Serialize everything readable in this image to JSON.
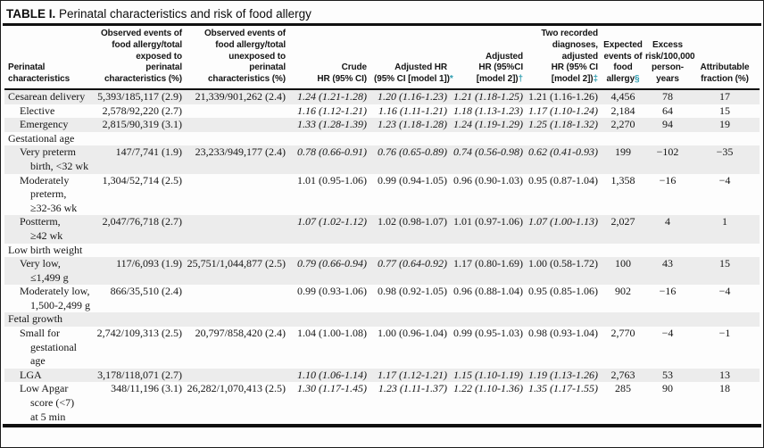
{
  "title": {
    "label": "TABLE I.",
    "text": "Perinatal characteristics and risk of food allergy"
  },
  "accent_color": "#2b9caf",
  "stripe_color": "#ececec",
  "header": {
    "label_column_lines": [
      "Perinatal",
      "characteristics"
    ],
    "columns": [
      {
        "id": "exposed",
        "lines": [
          "Observed events of",
          "food allergy/total",
          "exposed to",
          "perinatal",
          "characteristics (%)"
        ],
        "mark": ""
      },
      {
        "id": "unexposed",
        "lines": [
          "Observed events of",
          "food allergy/total",
          "unexposed to",
          "perinatal",
          "characteristics (%)"
        ],
        "mark": ""
      },
      {
        "id": "crude",
        "lines": [
          "Crude",
          "HR (95% CI)"
        ],
        "mark": ""
      },
      {
        "id": "adj1",
        "lines": [
          "Adjusted HR",
          "(95% CI [model 1])"
        ],
        "mark": "*"
      },
      {
        "id": "adj2",
        "lines": [
          "Adjusted",
          "HR (95%CI",
          "[model 2])"
        ],
        "mark": "†"
      },
      {
        "id": "two",
        "lines": [
          "Two recorded",
          "diagnoses,",
          "adjusted",
          "HR (95% CI",
          "[model 2])"
        ],
        "mark": "‡"
      },
      {
        "id": "expected",
        "lines": [
          "Expected",
          "events of",
          "food",
          "allergy"
        ],
        "mark": "§"
      },
      {
        "id": "excess",
        "lines": [
          "Excess",
          "risk/100,000",
          "person-",
          "years"
        ],
        "mark": ""
      },
      {
        "id": "attrib",
        "lines": [
          "Attributable",
          "fraction (%)"
        ],
        "mark": ""
      }
    ]
  },
  "rows": [
    {
      "shaded": true,
      "indent": 0,
      "section": false,
      "label_lines": [
        "Cesarean delivery"
      ],
      "cells": {
        "exposed": "5,393/185,117 (2.9)",
        "unexposed": "21,339/901,262 (2.4)",
        "crude": "1.24 (1.21-1.28)",
        "adj1": "1.20 (1.16-1.23)",
        "adj2": "1.21 (1.18-1.25)",
        "two": "1.21 (1.16-1.26)",
        "expected": "4,456",
        "excess": "78",
        "attrib": "17"
      },
      "italic": [
        "crude",
        "adj1",
        "adj2"
      ]
    },
    {
      "shaded": false,
      "indent": 1,
      "section": false,
      "label_lines": [
        "Elective"
      ],
      "cells": {
        "exposed": "2,578/92,220 (2.7)",
        "crude": "1.16 (1.12-1.21)",
        "adj1": "1.16 (1.11-1.21)",
        "adj2": "1.18 (1.13-1.23)",
        "two": "1.17 (1.10-1.24)",
        "expected": "2,184",
        "excess": "64",
        "attrib": "15"
      },
      "italic": [
        "crude",
        "adj1",
        "adj2",
        "two"
      ]
    },
    {
      "shaded": true,
      "indent": 1,
      "section": false,
      "label_lines": [
        "Emergency"
      ],
      "cells": {
        "exposed": "2,815/90,319 (3.1)",
        "crude": "1.33 (1.28-1.39)",
        "adj1": "1.23 (1.18-1.28)",
        "adj2": "1.24 (1.19-1.29)",
        "two": "1.25 (1.18-1.32)",
        "expected": "2,270",
        "excess": "94",
        "attrib": "19"
      },
      "italic": [
        "crude",
        "adj1",
        "adj2",
        "two"
      ]
    },
    {
      "shaded": false,
      "indent": 0,
      "section": true,
      "label_lines": [
        "Gestational age"
      ],
      "cells": {},
      "italic": []
    },
    {
      "shaded": true,
      "indent": 1,
      "section": false,
      "label_lines": [
        "Very preterm",
        "birth, <32 wk"
      ],
      "cells": {
        "exposed": "147/7,741 (1.9)",
        "unexposed": "23,233/949,177 (2.4)",
        "crude": "0.78 (0.66-0.91)",
        "adj1": "0.76 (0.65-0.89)",
        "adj2": "0.74 (0.56-0.98)",
        "two": "0.62 (0.41-0.93)",
        "expected": "199",
        "excess": "−102",
        "attrib": "−35"
      },
      "italic": [
        "crude",
        "adj1",
        "adj2",
        "two"
      ]
    },
    {
      "shaded": false,
      "indent": 1,
      "section": false,
      "label_lines": [
        "Moderately",
        "preterm,",
        "≥32-36 wk"
      ],
      "cells": {
        "exposed": "1,304/52,714 (2.5)",
        "crude": "1.01 (0.95-1.06)",
        "adj1": "0.99 (0.94-1.05)",
        "adj2": "0.96 (0.90-1.03)",
        "two": "0.95 (0.87-1.04)",
        "expected": "1,358",
        "excess": "−16",
        "attrib": "−4"
      },
      "italic": []
    },
    {
      "shaded": true,
      "indent": 1,
      "section": false,
      "label_lines": [
        "Postterm,",
        "≥42 wk"
      ],
      "cells": {
        "exposed": "2,047/76,718 (2.7)",
        "crude": "1.07 (1.02-1.12)",
        "adj1": "1.02 (0.98-1.07)",
        "adj2": "1.01 (0.97-1.06)",
        "two": "1.07 (1.00-1.13)",
        "expected": "2,027",
        "excess": "4",
        "attrib": "1"
      },
      "italic": [
        "crude",
        "two"
      ]
    },
    {
      "shaded": false,
      "indent": 0,
      "section": true,
      "label_lines": [
        "Low birth weight"
      ],
      "cells": {},
      "italic": []
    },
    {
      "shaded": true,
      "indent": 1,
      "section": false,
      "label_lines": [
        "Very low,",
        "≤1,499 g"
      ],
      "cells": {
        "exposed": "117/6,093 (1.9)",
        "unexposed": "25,751/1,044,877 (2.5)",
        "crude": "0.79 (0.66-0.94)",
        "adj1": "0.77 (0.64-0.92)",
        "adj2": "1.17 (0.80-1.69)",
        "two": "1.00 (0.58-1.72)",
        "expected": "100",
        "excess": "43",
        "attrib": "15"
      },
      "italic": [
        "crude",
        "adj1"
      ]
    },
    {
      "shaded": false,
      "indent": 1,
      "section": false,
      "label_lines": [
        "Moderately low,",
        "1,500-2,499 g"
      ],
      "cells": {
        "exposed": "866/35,510 (2.4)",
        "crude": "0.99 (0.93-1.06)",
        "adj1": "0.98 (0.92-1.05)",
        "adj2": "0.96 (0.88-1.04)",
        "two": "0.95 (0.85-1.06)",
        "expected": "902",
        "excess": "−16",
        "attrib": "−4"
      },
      "italic": []
    },
    {
      "shaded": true,
      "indent": 0,
      "section": true,
      "label_lines": [
        "Fetal growth"
      ],
      "cells": {},
      "italic": []
    },
    {
      "shaded": false,
      "indent": 1,
      "section": false,
      "label_lines": [
        "Small for",
        "gestational",
        "age"
      ],
      "cells": {
        "exposed": "2,742/109,313 (2.5)",
        "unexposed": "20,797/858,420 (2.4)",
        "crude": "1.04 (1.00-1.08)",
        "adj1": "1.00 (0.96-1.04)",
        "adj2": "0.99 (0.95-1.03)",
        "two": "0.98 (0.93-1.04)",
        "expected": "2,770",
        "excess": "−4",
        "attrib": "−1"
      },
      "italic": []
    },
    {
      "shaded": true,
      "indent": 1,
      "section": false,
      "label_lines": [
        "LGA"
      ],
      "cells": {
        "exposed": "3,178/118,071 (2.7)",
        "crude": "1.10 (1.06-1.14)",
        "adj1": "1.17 (1.12-1.21)",
        "adj2": "1.15 (1.10-1.19)",
        "two": "1.19 (1.13-1.26)",
        "expected": "2,763",
        "excess": "53",
        "attrib": "13"
      },
      "italic": [
        "crude",
        "adj1",
        "adj2",
        "two"
      ]
    },
    {
      "shaded": false,
      "indent": 1,
      "section": false,
      "label_lines": [
        "Low Apgar",
        "score (<7)",
        "at 5 min"
      ],
      "cells": {
        "exposed": "348/11,196 (3.1)",
        "unexposed": "26,282/1,070,413 (2.5)",
        "crude": "1.30 (1.17-1.45)",
        "adj1": "1.23 (1.11-1.37)",
        "adj2": "1.22 (1.10-1.36)",
        "two": "1.35 (1.17-1.55)",
        "expected": "285",
        "excess": "90",
        "attrib": "18"
      },
      "italic": [
        "crude",
        "adj1",
        "adj2",
        "two"
      ]
    }
  ]
}
